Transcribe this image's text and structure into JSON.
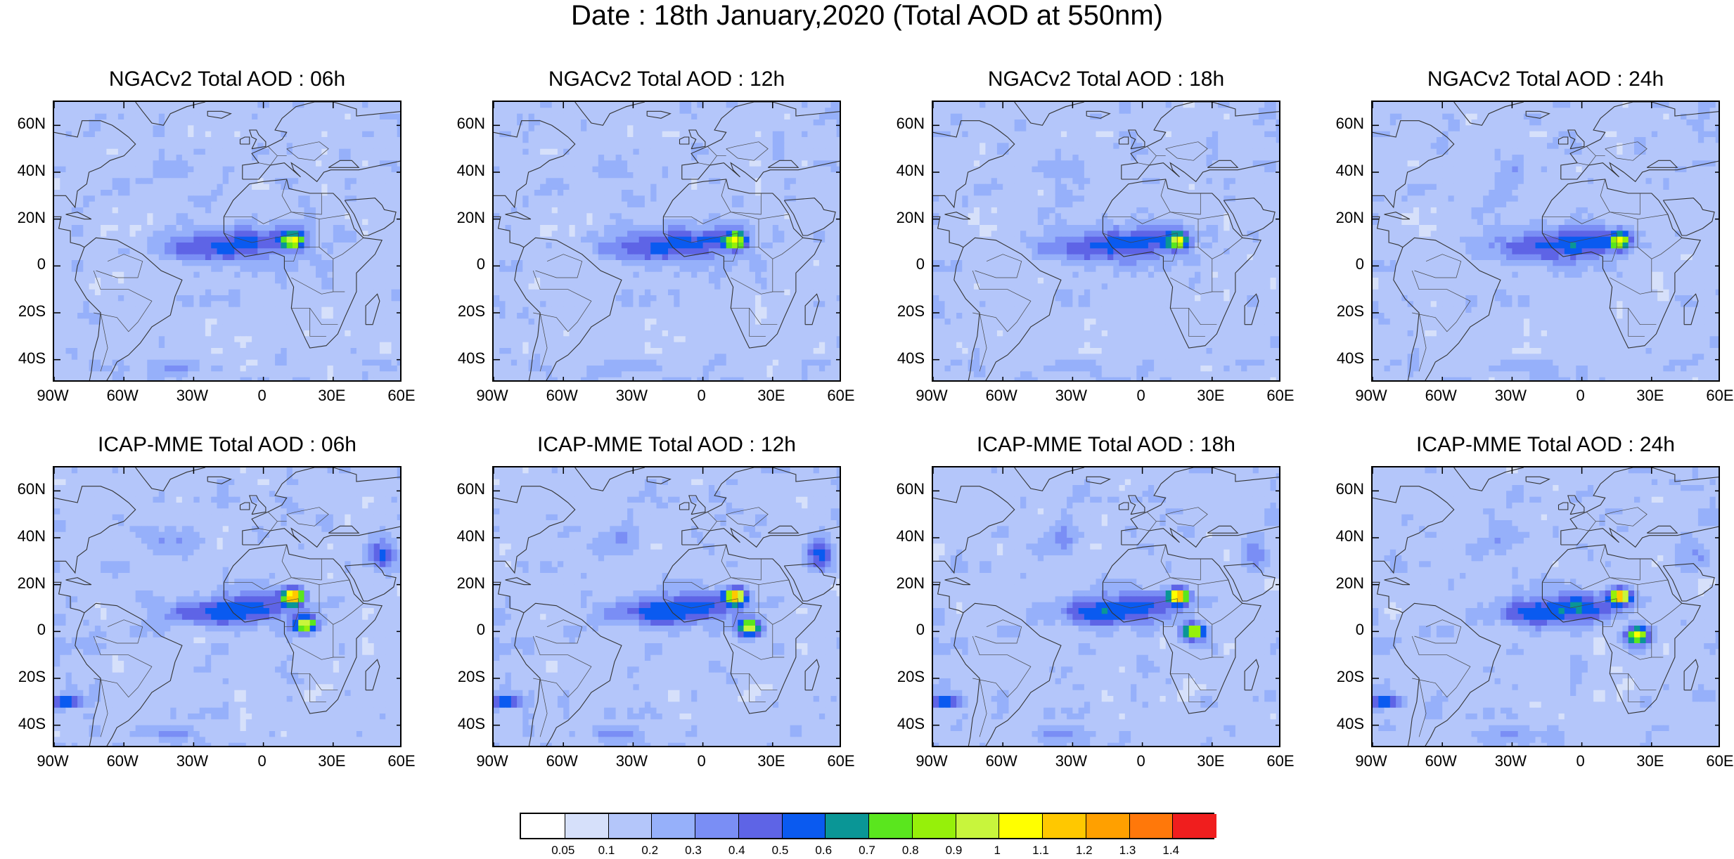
{
  "title": "Date : 18th January,2020 (Total AOD at 550nm)",
  "panels": [
    {
      "title": "NGACv2 Total AOD : 06h",
      "model": "NGACv2",
      "hour": "06h"
    },
    {
      "title": "NGACv2 Total AOD : 12h",
      "model": "NGACv2",
      "hour": "12h"
    },
    {
      "title": "NGACv2 Total AOD : 18h",
      "model": "NGACv2",
      "hour": "18h"
    },
    {
      "title": "NGACv2 Total AOD : 24h",
      "model": "NGACv2",
      "hour": "24h"
    },
    {
      "title": "ICAP-MME Total AOD : 06h",
      "model": "ICAP-MME",
      "hour": "06h"
    },
    {
      "title": "ICAP-MME Total AOD : 12h",
      "model": "ICAP-MME",
      "hour": "12h"
    },
    {
      "title": "ICAP-MME Total AOD : 18h",
      "model": "ICAP-MME",
      "hour": "18h"
    },
    {
      "title": "ICAP-MME Total AOD : 24h",
      "model": "ICAP-MME",
      "hour": "24h"
    }
  ],
  "axes": {
    "lat_labels": [
      "60N",
      "40N",
      "20N",
      "0",
      "20S",
      "40S"
    ],
    "lat_values": [
      60,
      40,
      20,
      0,
      -20,
      -40
    ],
    "lon_labels": [
      "90W",
      "60W",
      "30W",
      "0",
      "30E",
      "60E"
    ],
    "lon_values": [
      -90,
      -60,
      -30,
      0,
      30,
      60
    ],
    "lat_range": [
      -50,
      70
    ],
    "lon_range": [
      -90,
      60
    ]
  },
  "colorbar": {
    "labels": [
      "0.05",
      "0.1",
      "0.2",
      "0.3",
      "0.4",
      "0.5",
      "0.6",
      "0.7",
      "0.8",
      "0.9",
      "1",
      "1.1",
      "1.2",
      "1.3",
      "1.4"
    ],
    "colors": [
      "#ffffff",
      "#d6e0fa",
      "#b4c6fa",
      "#96b0fa",
      "#7a8ef5",
      "#5e64e6",
      "#0a5af0",
      "#0a9696",
      "#5ae61e",
      "#96f00a",
      "#c8f53c",
      "#ffff00",
      "#ffc800",
      "#ffa000",
      "#ff780a",
      "#f01e1e"
    ]
  }
}
